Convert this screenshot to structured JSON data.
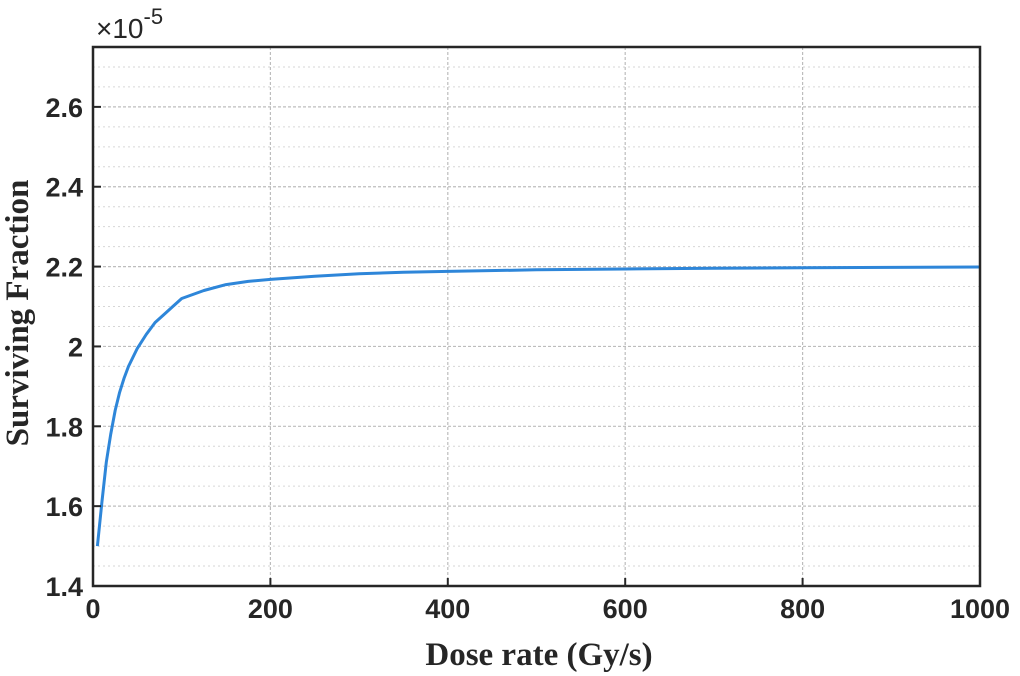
{
  "chart_data": {
    "type": "line",
    "xlabel": "Dose rate (Gy/s)",
    "ylabel": "Surviving Fraction",
    "y_multiplier": "×10",
    "y_exponent": "-5",
    "xlim": [
      0,
      1000
    ],
    "ylim": [
      1.4,
      2.75
    ],
    "x_ticks": [
      0,
      200,
      400,
      600,
      800,
      1000
    ],
    "x_tick_labels": [
      "0",
      "200",
      "400",
      "600",
      "800",
      "1000"
    ],
    "y_ticks": [
      1.4,
      1.6,
      1.8,
      2.0,
      2.2,
      2.4,
      2.6
    ],
    "y_tick_labels": [
      "1.4",
      "1.6",
      "1.8",
      "2",
      "2.2",
      "2.4",
      "2.6"
    ],
    "grid": true,
    "minor_grid": true,
    "series": [
      {
        "color": "#2e86d9",
        "x": [
          5,
          10,
          15,
          20,
          25,
          30,
          35,
          40,
          50,
          60,
          70,
          80,
          90,
          100,
          125,
          150,
          175,
          200,
          250,
          300,
          350,
          400,
          500,
          600,
          700,
          800,
          900,
          1000
        ],
        "y": [
          1.5,
          1.61,
          1.71,
          1.78,
          1.84,
          1.885,
          1.92,
          1.95,
          1.995,
          2.03,
          2.06,
          2.08,
          2.1,
          2.12,
          2.14,
          2.155,
          2.163,
          2.168,
          2.176,
          2.182,
          2.186,
          2.188,
          2.192,
          2.194,
          2.196,
          2.197,
          2.198,
          2.199
        ]
      }
    ]
  }
}
